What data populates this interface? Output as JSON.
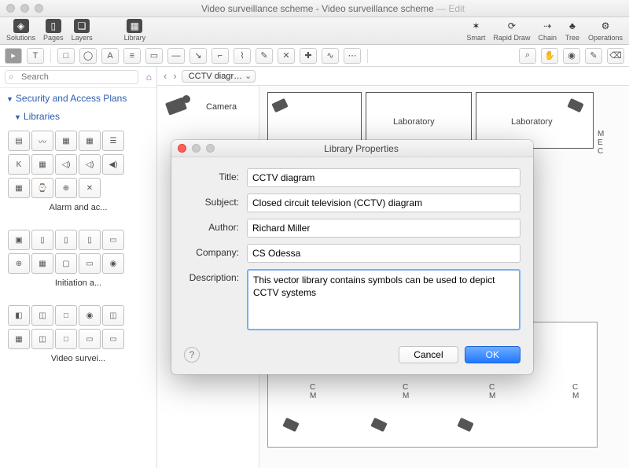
{
  "window": {
    "title_main": "Video surveillance scheme - Video surveillance scheme",
    "title_suffix": "— Edit"
  },
  "topbar": {
    "left": [
      {
        "name": "solutions",
        "label": "Solutions",
        "glyph": "◈"
      },
      {
        "name": "pages",
        "label": "Pages",
        "glyph": "▯"
      },
      {
        "name": "layers",
        "label": "Layers",
        "glyph": "❏"
      }
    ],
    "mid": [
      {
        "name": "library",
        "label": "Library",
        "glyph": "▦"
      }
    ],
    "right": [
      {
        "name": "smart",
        "label": "Smart",
        "glyph": "✶"
      },
      {
        "name": "rapid",
        "label": "Rapid Draw",
        "glyph": "⟳"
      },
      {
        "name": "chain",
        "label": "Chain",
        "glyph": "⇢"
      },
      {
        "name": "tree",
        "label": "Tree",
        "glyph": "♣"
      },
      {
        "name": "operations",
        "label": "Operations",
        "glyph": "⚙"
      }
    ]
  },
  "tools2": [
    "▸",
    "T",
    " ",
    "□",
    "◯",
    "A",
    "≡",
    "▭",
    "—",
    "↘",
    "⌐",
    "⌇",
    "✎",
    "✕",
    "✚",
    "∿",
    "⋯",
    " ",
    "⌕",
    "✋",
    "◉",
    "✎",
    "⌫"
  ],
  "search": {
    "placeholder": "Search"
  },
  "tree": {
    "root": "Security and Access Plans",
    "child": "Libraries"
  },
  "libs": [
    {
      "title": "Alarm and ac...",
      "cells": [
        "▤",
        "〰",
        "▦",
        "▦",
        "☰",
        "K",
        "▦",
        "◁)",
        "◁)",
        "◀)",
        "▦",
        "⌚",
        "⊕",
        "✕"
      ]
    },
    {
      "title": "Initiation a...",
      "cells": [
        "▣",
        "▯",
        "▯",
        "▯",
        "▭",
        "⊕",
        "▦",
        "▢",
        "▭",
        "◉"
      ]
    },
    {
      "title": "Video survei...",
      "cells": [
        "◧",
        "◫",
        "□",
        "◉",
        "◫",
        "▦",
        "◫",
        "□",
        "▭",
        "▭"
      ]
    }
  ],
  "canvas": {
    "dropdown": "CCTV diagr…",
    "stencil_label": "Camera",
    "rooms": [
      {
        "label": "Laboratory"
      },
      {
        "label": "Laboratory"
      }
    ],
    "side_letters": "M\nE\nC"
  },
  "dialog": {
    "title": "Library Properties",
    "fields": {
      "title_l": "Title:",
      "title_v": "CCTV diagram",
      "subject_l": "Subject:",
      "subject_v": "Closed circuit television (CCTV) diagram",
      "author_l": "Author:",
      "author_v": "Richard Miller",
      "company_l": "Company:",
      "company_v": "CS Odessa",
      "desc_l": "Description:",
      "desc_v": "This vector library contains symbols can be used to depict CCTV systems"
    },
    "cancel": "Cancel",
    "ok": "OK"
  },
  "floor_labels": {
    "cm": "C\nM"
  }
}
